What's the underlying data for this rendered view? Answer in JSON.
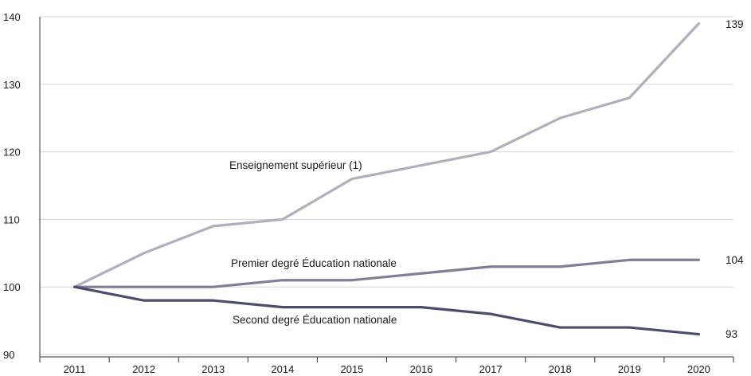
{
  "chart_data": {
    "type": "line",
    "x": [
      "2011",
      "2012",
      "2013",
      "2014",
      "2015",
      "2016",
      "2017",
      "2018",
      "2019",
      "2020"
    ],
    "ylim": [
      90,
      140
    ],
    "yticks": [
      90,
      100,
      110,
      120,
      130,
      140
    ],
    "grid": "horizontal",
    "series": [
      {
        "name": "Enseignement supérieur (1)",
        "values": [
          100,
          105,
          109,
          110,
          116,
          118,
          120,
          125,
          128,
          139
        ],
        "color": "#aeb0be",
        "end_label": "139"
      },
      {
        "name": "Premier degré Éducation nationale",
        "values": [
          100,
          100,
          100,
          101,
          101,
          102,
          103,
          103,
          104,
          104
        ],
        "color": "#7e7f96",
        "end_label": "104"
      },
      {
        "name": "Second degré Éducation nationale",
        "values": [
          100,
          98,
          98,
          97,
          97,
          97,
          96,
          94,
          94,
          93
        ],
        "color": "#4b4c6e",
        "end_label": "93"
      }
    ],
    "axis_color": "#333333",
    "grid_color": "#d5d5d5"
  }
}
